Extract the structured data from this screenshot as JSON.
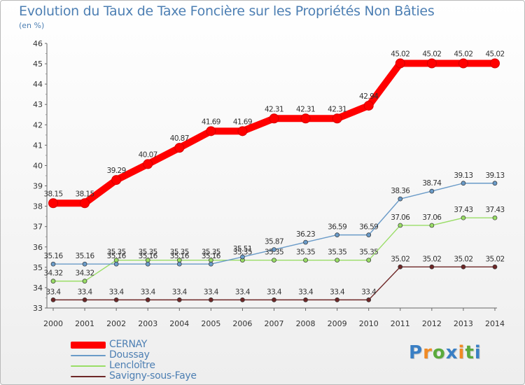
{
  "chart_data": {
    "type": "line",
    "title": "Evolution du Taux de Taxe Foncière sur les Propriétés Non Bâties",
    "ylabel": "(en %)",
    "xlabel": "",
    "ylim": [
      33,
      46
    ],
    "yticks": [
      "33",
      "34",
      "35",
      "36",
      "37",
      "38",
      "39",
      "40",
      "41",
      "42",
      "43",
      "44",
      "45",
      "46"
    ],
    "categories": [
      "2000",
      "2001",
      "2002",
      "2003",
      "2004",
      "2005",
      "2006",
      "2007",
      "2008",
      "2009",
      "2010",
      "2011",
      "2012",
      "2013",
      "2014"
    ],
    "series": [
      {
        "name": "CERNAY",
        "color": "#ff0000",
        "values": [
          38.15,
          38.15,
          39.29,
          40.07,
          40.87,
          41.69,
          41.69,
          42.31,
          42.31,
          42.31,
          42.94,
          45.02,
          45.02,
          45.02,
          45.02
        ],
        "labels": [
          "38.15",
          "38.15",
          "39.29",
          "40.07",
          "40.87",
          "41.69",
          "41.69",
          "42.31",
          "42.31",
          "42.31",
          "42.94",
          "45.02",
          "45.02",
          "45.02",
          "45.02"
        ]
      },
      {
        "name": "Doussay",
        "color": "#6a9bc8",
        "values": [
          35.16,
          35.16,
          35.16,
          35.16,
          35.16,
          35.16,
          35.51,
          35.87,
          36.23,
          36.59,
          36.59,
          38.36,
          38.74,
          39.13,
          39.13
        ],
        "labels": [
          "35.16",
          "35.16",
          "35.16",
          "35.16",
          "35.16",
          "35.16",
          "35.51",
          "35.87",
          "36.23",
          "36.59",
          "36.59",
          "38.36",
          "38.74",
          "39.13",
          "39.13"
        ]
      },
      {
        "name": "Lencloître",
        "color": "#99dd66",
        "values": [
          34.32,
          34.32,
          35.35,
          35.35,
          35.35,
          35.35,
          35.35,
          35.35,
          35.35,
          35.35,
          35.35,
          37.06,
          37.06,
          37.43,
          37.43
        ],
        "labels": [
          "34.32",
          "34.32",
          "35.35",
          "35.35",
          "35.35",
          "35.35",
          "35.35",
          "35.35",
          "35.35",
          "35.35",
          "35.35",
          "37.06",
          "37.06",
          "37.43",
          "37.43"
        ]
      },
      {
        "name": "Savigny-sous-Faye",
        "color": "#6e2727",
        "values": [
          33.4,
          33.4,
          33.4,
          33.4,
          33.4,
          33.4,
          33.4,
          33.4,
          33.4,
          33.4,
          33.4,
          35.02,
          35.02,
          35.02,
          35.02
        ],
        "labels": [
          "33.4",
          "33.4",
          "33.4",
          "33.4",
          "33.4",
          "33.4",
          "33.4",
          "33.4",
          "33.4",
          "33.4",
          "33.4",
          "35.02",
          "35.02",
          "35.02",
          "35.02"
        ]
      }
    ]
  },
  "brand": {
    "letters": [
      "P",
      "r",
      "o",
      "x",
      "i",
      "t",
      "i"
    ],
    "colors": [
      "#3a7fc4",
      "#f08a24",
      "#5aaa3c",
      "#3a7fc4",
      "#f08a24",
      "#5aaa3c",
      "#3a7fc4"
    ]
  }
}
